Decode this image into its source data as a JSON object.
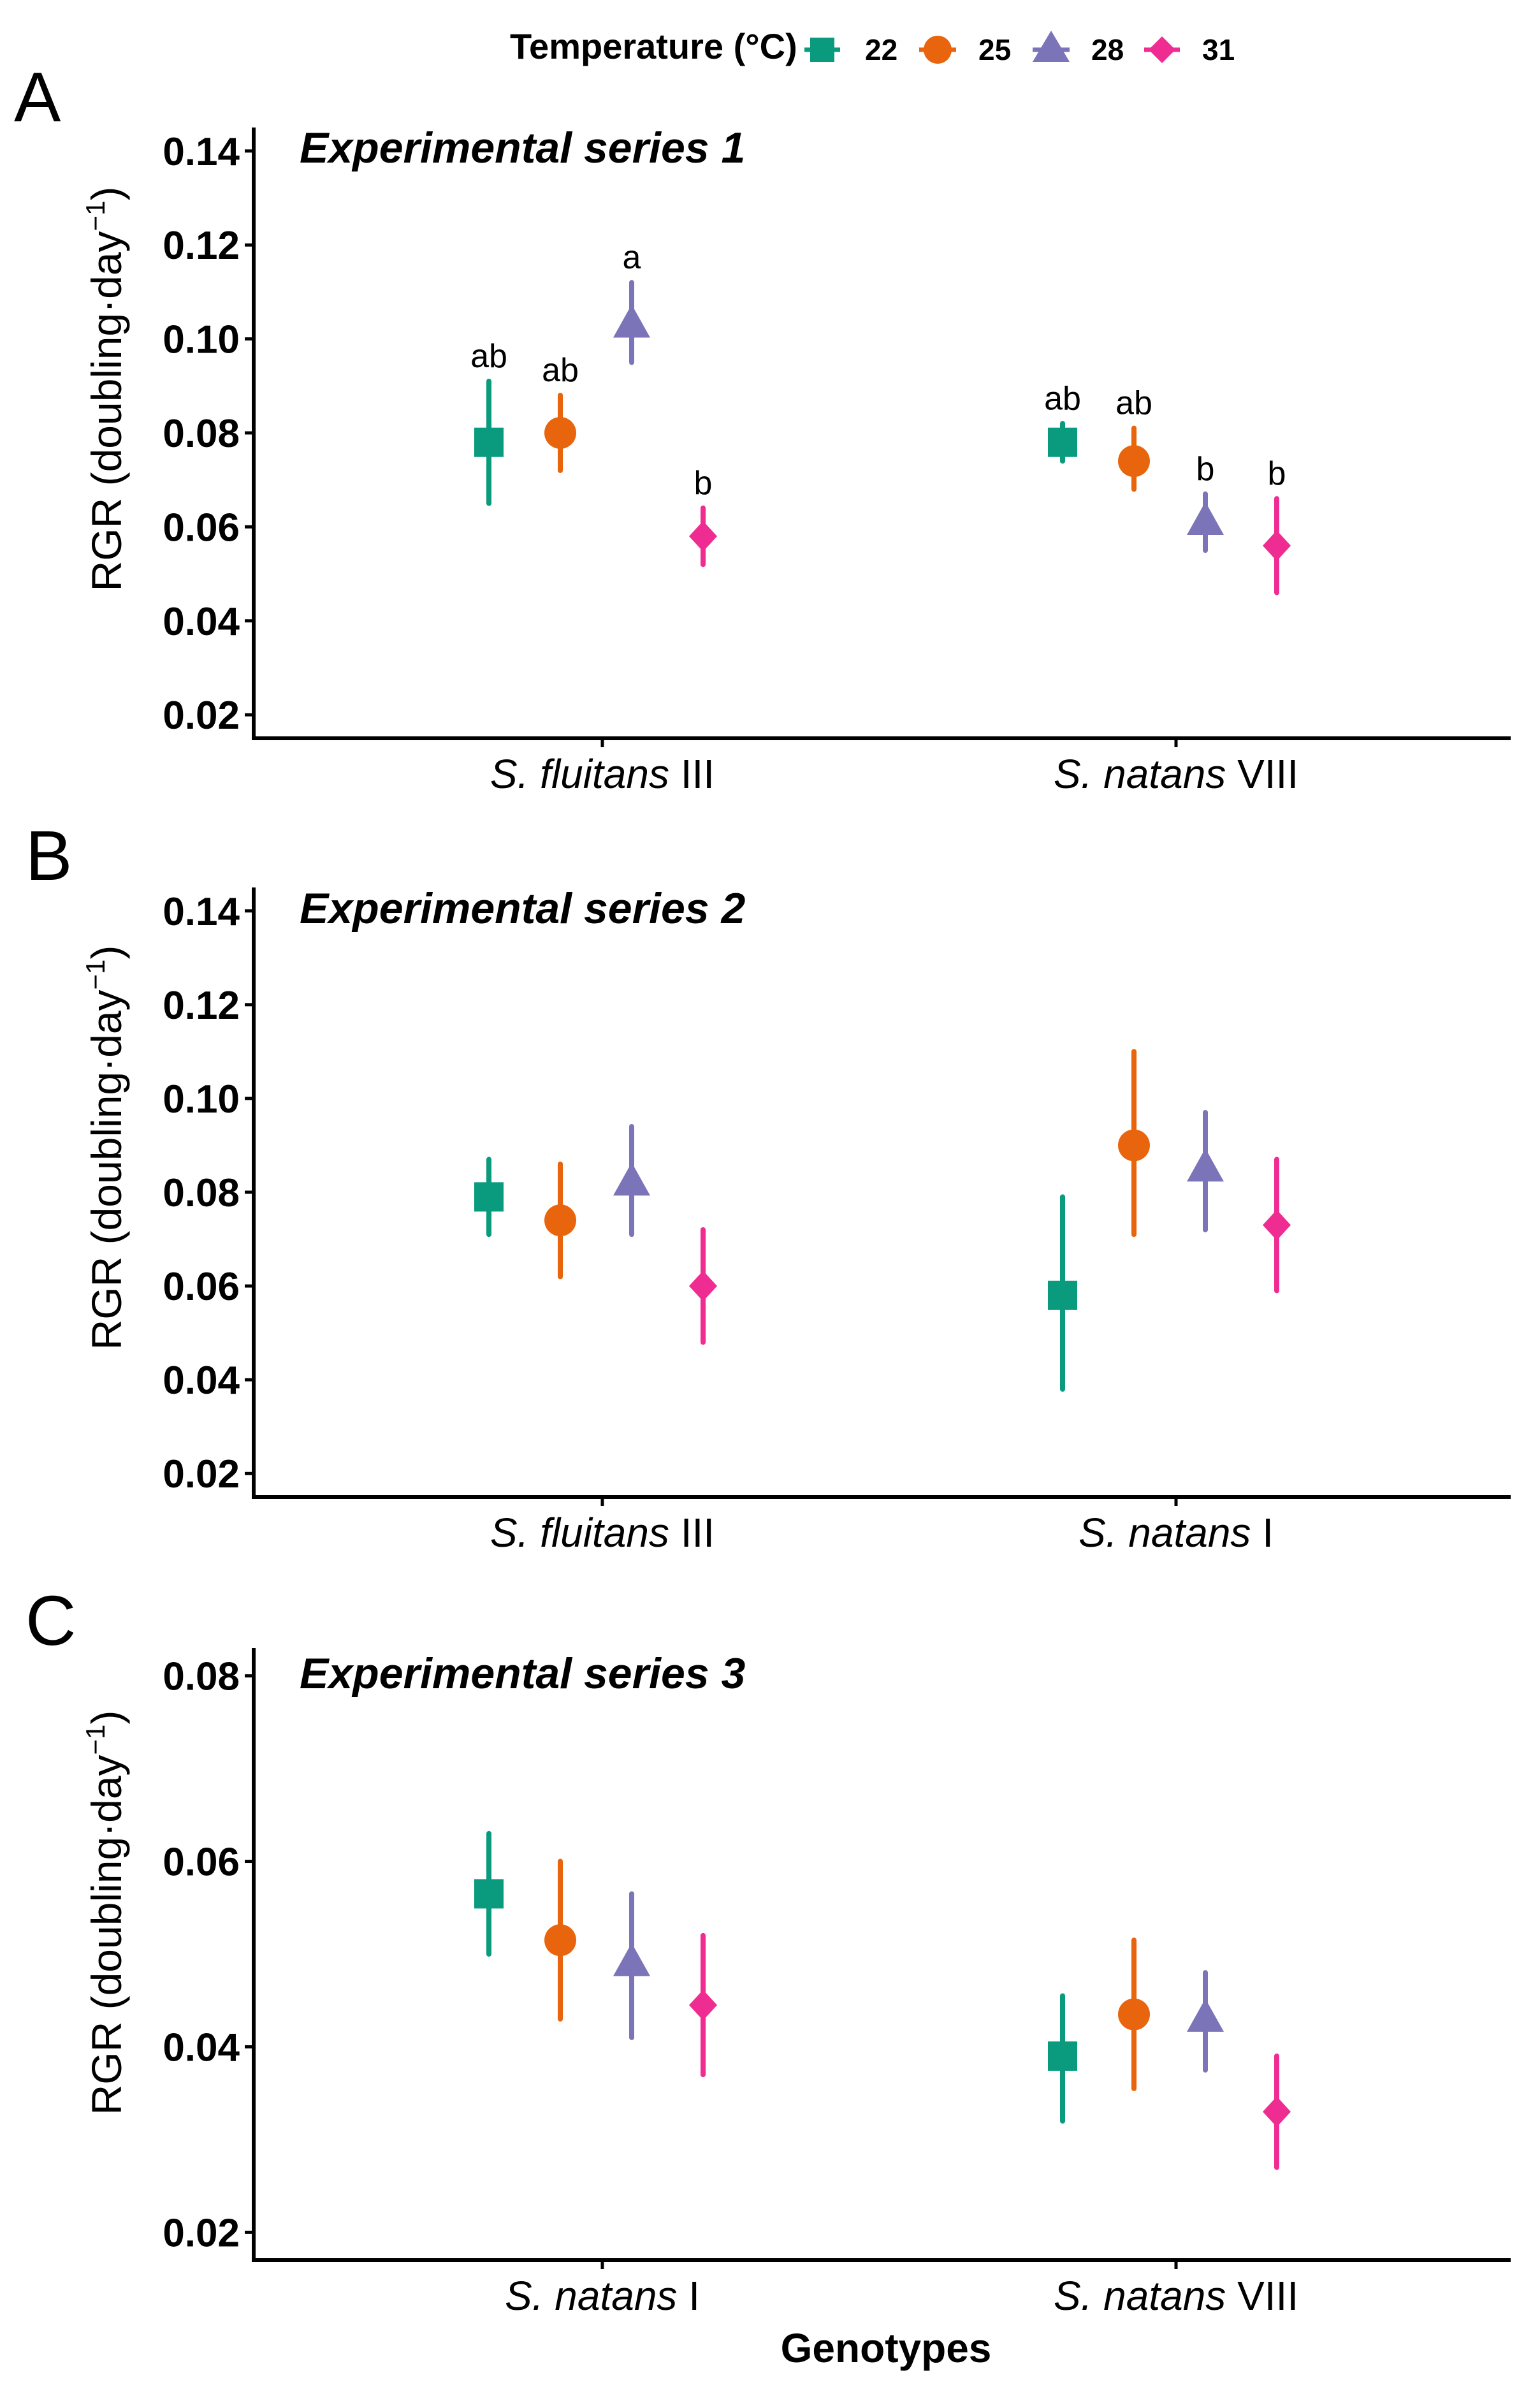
{
  "legend": {
    "title": "Temperature (°C)",
    "items": [
      {
        "label": "22",
        "color": "#0a9b7e",
        "shape": "square-icon"
      },
      {
        "label": "25",
        "color": "#e9650d",
        "shape": "circle-icon"
      },
      {
        "label": "28",
        "color": "#7b74b8",
        "shape": "triangle-icon"
      },
      {
        "label": "31",
        "color": "#ef2c92",
        "shape": "diamond-icon"
      }
    ]
  },
  "y_axis_label": {
    "main": "RGR (doubling·day",
    "sup": "−1",
    "close": ")"
  },
  "x_axis_title": "Genotypes",
  "chart_data": [
    {
      "type": "scatter",
      "panel": "A",
      "title": "Experimental series 1",
      "categories": [
        {
          "italic": "S. fluitans",
          "roman": " III"
        },
        {
          "italic": "S. natans",
          "roman": " VIII"
        }
      ],
      "ylim": [
        0.015,
        0.145
      ],
      "yticks": [
        "0.02",
        "0.04",
        "0.06",
        "0.08",
        "0.10",
        "0.12",
        "0.14"
      ],
      "series": [
        {
          "name": "22",
          "values": [
            0.078,
            0.078
          ],
          "lower": [
            0.065,
            0.074
          ],
          "upper": [
            0.091,
            0.082
          ],
          "labels": [
            "ab",
            "ab"
          ]
        },
        {
          "name": "25",
          "values": [
            0.08,
            0.074
          ],
          "lower": [
            0.072,
            0.068
          ],
          "upper": [
            0.088,
            0.081
          ],
          "labels": [
            "ab",
            "ab"
          ]
        },
        {
          "name": "28",
          "values": [
            0.103,
            0.061
          ],
          "lower": [
            0.095,
            0.055
          ],
          "upper": [
            0.112,
            0.067
          ],
          "labels": [
            "a",
            "b"
          ]
        },
        {
          "name": "31",
          "values": [
            0.058,
            0.056
          ],
          "lower": [
            0.052,
            0.046
          ],
          "upper": [
            0.064,
            0.066
          ],
          "labels": [
            "b",
            "b"
          ]
        }
      ]
    },
    {
      "type": "scatter",
      "panel": "B",
      "title": "Experimental series 2",
      "categories": [
        {
          "italic": "S. fluitans",
          "roman": " III"
        },
        {
          "italic": "S. natans",
          "roman": " I"
        }
      ],
      "ylim": [
        0.015,
        0.145
      ],
      "yticks": [
        "0.02",
        "0.04",
        "0.06",
        "0.08",
        "0.10",
        "0.12",
        "0.14"
      ],
      "series": [
        {
          "name": "22",
          "values": [
            0.079,
            0.058
          ],
          "lower": [
            0.071,
            0.038
          ],
          "upper": [
            0.087,
            0.079
          ]
        },
        {
          "name": "25",
          "values": [
            0.074,
            0.09
          ],
          "lower": [
            0.062,
            0.071
          ],
          "upper": [
            0.086,
            0.11
          ]
        },
        {
          "name": "28",
          "values": [
            0.082,
            0.085
          ],
          "lower": [
            0.071,
            0.072
          ],
          "upper": [
            0.094,
            0.097
          ]
        },
        {
          "name": "31",
          "values": [
            0.06,
            0.073
          ],
          "lower": [
            0.048,
            0.059
          ],
          "upper": [
            0.072,
            0.087
          ]
        }
      ]
    },
    {
      "type": "scatter",
      "panel": "C",
      "title": "Experimental series 3",
      "categories": [
        {
          "italic": "S. natans",
          "roman": " I"
        },
        {
          "italic": "S. natans",
          "roman": " VIII"
        }
      ],
      "ylim": [
        0.017,
        0.083
      ],
      "yticks": [
        "0.02",
        "0.04",
        "0.06",
        "0.08"
      ],
      "series": [
        {
          "name": "22",
          "values": [
            0.0565,
            0.039
          ],
          "lower": [
            0.05,
            0.032
          ],
          "upper": [
            0.063,
            0.0455
          ]
        },
        {
          "name": "25",
          "values": [
            0.0515,
            0.0435
          ],
          "lower": [
            0.043,
            0.0355
          ],
          "upper": [
            0.06,
            0.0515
          ]
        },
        {
          "name": "28",
          "values": [
            0.049,
            0.043
          ],
          "lower": [
            0.041,
            0.0375
          ],
          "upper": [
            0.0565,
            0.048
          ]
        },
        {
          "name": "31",
          "values": [
            0.0445,
            0.033
          ],
          "lower": [
            0.037,
            0.027
          ],
          "upper": [
            0.052,
            0.039
          ]
        }
      ]
    }
  ]
}
